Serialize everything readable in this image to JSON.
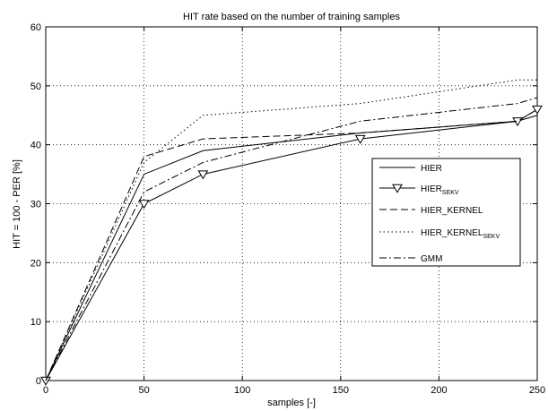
{
  "chart_data": {
    "type": "line",
    "title": "HIT rate based on the number of training samples",
    "xlabel": "samples [-]",
    "ylabel": "HIT = 100 - PER [%]",
    "xlim": [
      0,
      250
    ],
    "ylim": [
      0,
      60
    ],
    "xticks": [
      0,
      50,
      100,
      150,
      200,
      250
    ],
    "yticks": [
      0,
      10,
      20,
      30,
      40,
      50,
      60
    ],
    "grid": true,
    "legend_position": "right",
    "series": [
      {
        "name": "HIER",
        "sub": "",
        "style": "solid",
        "marker": "none",
        "x": [
          0,
          50,
          80,
          160,
          240,
          250
        ],
        "y": [
          0,
          35,
          39,
          42,
          44,
          45
        ]
      },
      {
        "name": "HIER",
        "sub": "SEKV",
        "style": "solid",
        "marker": "triangle-down",
        "x": [
          0,
          50,
          80,
          160,
          240,
          250
        ],
        "y": [
          0,
          30,
          35,
          41,
          44,
          46
        ]
      },
      {
        "name": "HIER_KERNEL",
        "sub": "",
        "style": "dashed",
        "marker": "none",
        "x": [
          0,
          50,
          80,
          160,
          240,
          250
        ],
        "y": [
          0,
          38,
          41,
          42,
          44,
          46
        ]
      },
      {
        "name": "HIER_KERNEL",
        "sub": "SEKV",
        "style": "dotted",
        "marker": "none",
        "x": [
          0,
          50,
          80,
          160,
          240,
          250
        ],
        "y": [
          0,
          37,
          45,
          47,
          51,
          51
        ]
      },
      {
        "name": "GMM",
        "sub": "",
        "style": "dashdot",
        "marker": "none",
        "x": [
          0,
          50,
          80,
          160,
          240,
          250
        ],
        "y": [
          0,
          32,
          37,
          44,
          47,
          48
        ]
      }
    ]
  }
}
